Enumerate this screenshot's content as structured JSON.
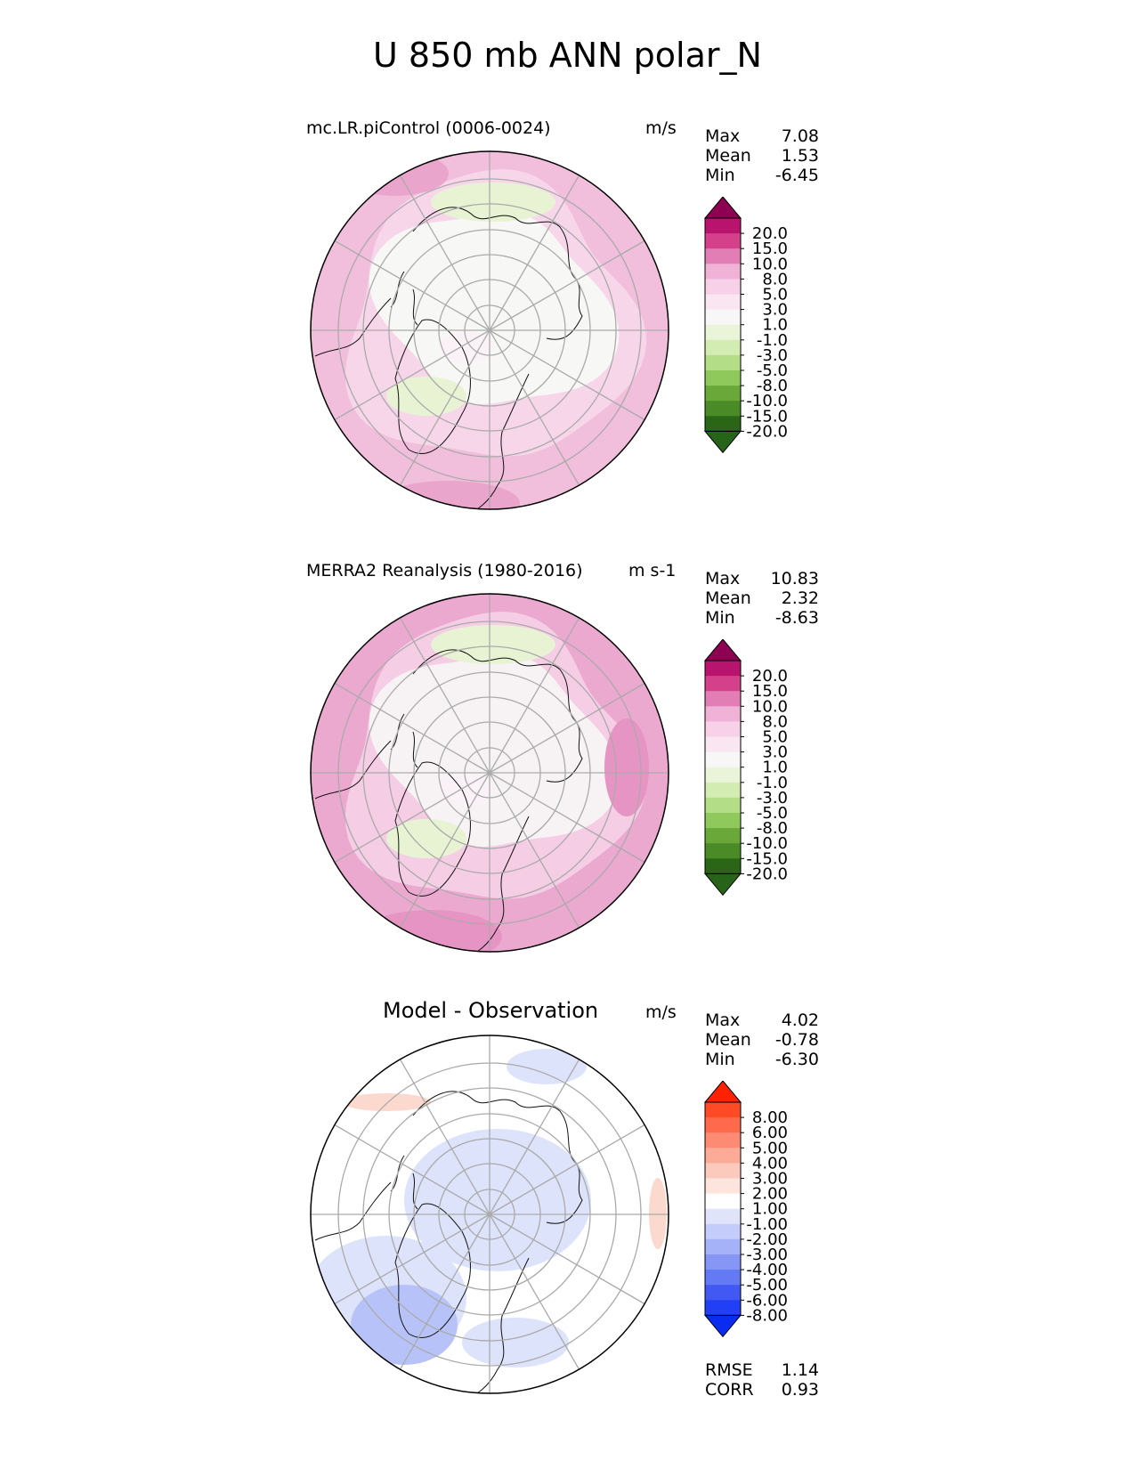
{
  "figure_title": "U 850 mb ANN polar_N",
  "panels": [
    {
      "title": "mc.LR.piControl (0006-0024)",
      "units": "m/s",
      "stats": {
        "max_label": "Max",
        "max": "7.08",
        "mean_label": "Mean",
        "mean": "1.53",
        "min_label": "Min",
        "min": "-6.45"
      },
      "colorbar": {
        "labels": [
          "20.0",
          "15.0",
          "10.0",
          "8.0",
          "5.0",
          "3.0",
          "1.0",
          "-1.0",
          "-3.0",
          "-5.0",
          "-8.0",
          "-10.0",
          "-15.0",
          "-20.0"
        ],
        "colors": [
          "#8e0152",
          "#b8146e",
          "#d5408b",
          "#e27eb5",
          "#f0b2d6",
          "#f6d1e7",
          "#f9e6f0",
          "#f7f7f7",
          "#eaf4d8",
          "#d2ecb2",
          "#b4dd87",
          "#90c95b",
          "#6aa83a",
          "#4a8a27",
          "#2a6616",
          "#276419"
        ]
      },
      "fields": [
        {
          "color": "#f1bfdc",
          "desc": "outer westerly ring"
        },
        {
          "color": "#f7d6ea",
          "desc": "mid band"
        },
        {
          "color": "#f7f7f5",
          "desc": "polar cap near zero"
        },
        {
          "color": "#e8f3d4",
          "desc": "weak easterlies"
        }
      ]
    },
    {
      "title": "MERRA2 Reanalysis (1980-2016)",
      "units": "m s-1",
      "stats": {
        "max_label": "Max",
        "max": "10.83",
        "mean_label": "Mean",
        "mean": "2.32",
        "min_label": "Min",
        "min": "-8.63"
      },
      "colorbar": {
        "labels": [
          "20.0",
          "15.0",
          "10.0",
          "8.0",
          "5.0",
          "3.0",
          "1.0",
          "-1.0",
          "-3.0",
          "-5.0",
          "-8.0",
          "-10.0",
          "-15.0",
          "-20.0"
        ],
        "colors": [
          "#8e0152",
          "#b8146e",
          "#d5408b",
          "#e27eb5",
          "#f0b2d6",
          "#f6d1e7",
          "#f9e6f0",
          "#f7f7f7",
          "#eaf4d8",
          "#d2ecb2",
          "#b4dd87",
          "#90c95b",
          "#6aa83a",
          "#4a8a27",
          "#2a6616",
          "#276419"
        ]
      },
      "fields": [
        {
          "color": "#eba9d0",
          "desc": "strong outer westerlies"
        },
        {
          "color": "#f5cde5",
          "desc": "mid band"
        },
        {
          "color": "#f7f3f5",
          "desc": "polar cap"
        },
        {
          "color": "#e8f3d4",
          "desc": "weak easterlies"
        }
      ]
    },
    {
      "title": "Model - Observation",
      "units": "m/s",
      "stats": {
        "max_label": "Max",
        "max": "4.02",
        "mean_label": "Mean",
        "mean": "-0.78",
        "min_label": "Min",
        "min": "-6.30"
      },
      "colorbar": {
        "labels": [
          "8.00",
          "6.00",
          "5.00",
          "4.00",
          "3.00",
          "2.00",
          "1.00",
          "-1.00",
          "-2.00",
          "-3.00",
          "-4.00",
          "-5.00",
          "-6.00",
          "-8.00"
        ],
        "colors": [
          "#ff2200",
          "#ff4a26",
          "#ff6a4d",
          "#fd8a73",
          "#fdab99",
          "#fcc9bd",
          "#fde4dc",
          "#ffffff",
          "#dfe4fb",
          "#c3ccfa",
          "#a6b2f8",
          "#8596f6",
          "#6479f4",
          "#4258f2",
          "#2140f5",
          "#0a2cf0"
        ]
      },
      "fields": [
        {
          "color": "#ffffff",
          "desc": "near zero"
        },
        {
          "color": "#dde3fb",
          "desc": "slight negative"
        },
        {
          "color": "#b7c3f8",
          "desc": "negative"
        },
        {
          "color": "#fbd9cf",
          "desc": "slight positive"
        }
      ],
      "footer": {
        "rmse_label": "RMSE",
        "rmse": "1.14",
        "corr_label": "CORR",
        "corr": "0.93"
      }
    }
  ]
}
